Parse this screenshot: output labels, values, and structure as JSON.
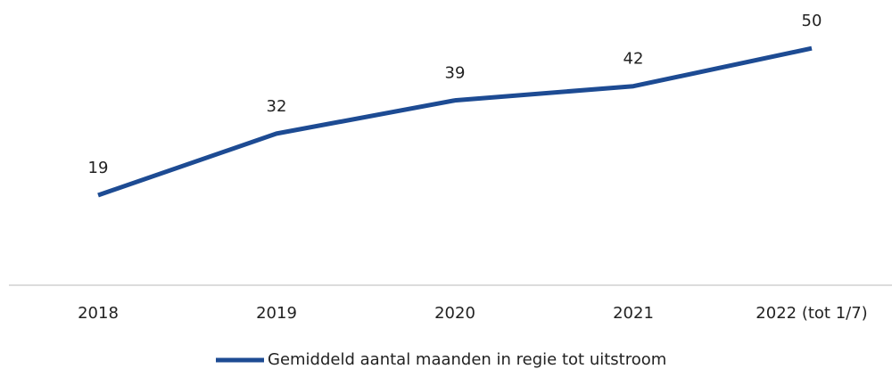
{
  "chart_data": {
    "type": "line",
    "categories": [
      "2018",
      "2019",
      "2020",
      "2021",
      "2022 (tot 1/7)"
    ],
    "series": [
      {
        "name": "Gemiddeld aantal maanden in regie tot uitstroom",
        "color": "#1d4b93",
        "values": [
          19,
          32,
          39,
          42,
          50
        ]
      }
    ],
    "ylim": [
      0,
      60
    ],
    "grid": false,
    "legend": "bottom"
  }
}
